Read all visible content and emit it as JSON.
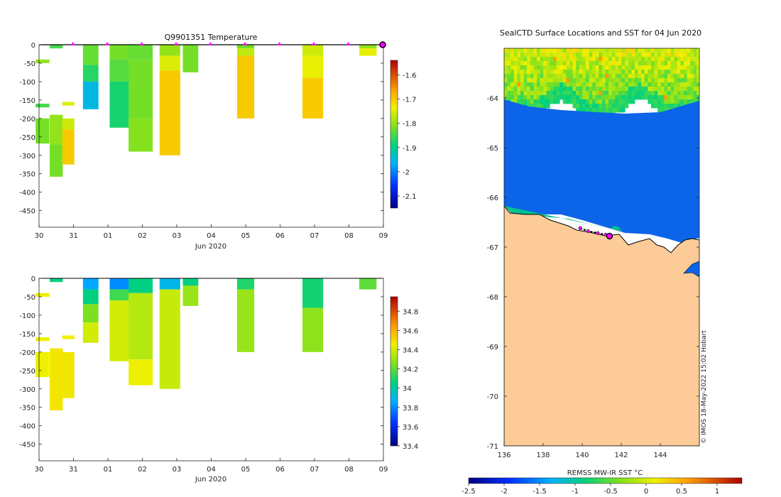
{
  "chart_data": [
    {
      "id": "temp",
      "type": "heatmap",
      "title": "Q9901351  Temperature",
      "xlabel": "Jun 2020",
      "ylabel": "",
      "ylim": [
        -495,
        0
      ],
      "y_ticks": [
        0,
        -50,
        -100,
        -150,
        -200,
        -250,
        -300,
        -350,
        -400,
        -450
      ],
      "x_ticks": [
        "30",
        "31",
        "01",
        "02",
        "03",
        "04",
        "05",
        "06",
        "07",
        "08",
        "09"
      ],
      "colorbar": {
        "min": -2.15,
        "max": -1.54,
        "ticks": [
          -1.6,
          -1.7,
          -1.8,
          -1.9,
          -2,
          -2.1
        ]
      },
      "surface_markers_day": [
        1,
        2,
        3,
        4,
        5,
        6,
        7,
        8,
        9,
        10
      ],
      "current_marker_day": 10,
      "profiles": [
        {
          "day": 0.1,
          "w": 0.4,
          "segments": [
            [
              -40,
              -50,
              -1.8
            ],
            [
              -160,
              -170,
              -1.85
            ],
            [
              -200,
              -268,
              -1.82
            ]
          ]
        },
        {
          "day": 0.5,
          "w": 0.38,
          "segments": [
            [
              0,
              -10,
              -1.85
            ],
            [
              -190,
              -270,
              -1.8
            ],
            [
              -270,
              -358,
              -1.82
            ]
          ]
        },
        {
          "day": 0.85,
          "w": 0.35,
          "segments": [
            [
              -155,
              -165,
              -1.75
            ],
            [
              -200,
              -230,
              -1.76
            ],
            [
              -230,
              -325,
              -1.7
            ]
          ]
        },
        {
          "day": 1.5,
          "w": 0.45,
          "segments": [
            [
              0,
              -55,
              -1.83
            ],
            [
              -55,
              -100,
              -1.87
            ],
            [
              -100,
              -175,
              -1.95
            ]
          ]
        },
        {
          "day": 2.35,
          "w": 0.6,
          "segments": [
            [
              0,
              -40,
              -1.82
            ],
            [
              -40,
              -100,
              -1.84
            ],
            [
              -100,
              -225,
              -1.88
            ]
          ]
        },
        {
          "day": 2.95,
          "w": 0.7,
          "segments": [
            [
              0,
              -40,
              -1.83
            ],
            [
              -40,
              -200,
              -1.82
            ],
            [
              -200,
              -290,
              -1.81
            ]
          ]
        },
        {
          "day": 3.8,
          "w": 0.6,
          "segments": [
            [
              0,
              -30,
              -1.8
            ],
            [
              -30,
              -70,
              -1.75
            ],
            [
              -70,
              -300,
              -1.7
            ]
          ]
        },
        {
          "day": 4.4,
          "w": 0.45,
          "segments": [
            [
              0,
              -75,
              -1.82
            ]
          ]
        },
        {
          "day": 6.0,
          "w": 0.5,
          "segments": [
            [
              0,
              -10,
              -1.82
            ],
            [
              -10,
              -30,
              -1.77
            ],
            [
              -30,
              -200,
              -1.7
            ]
          ]
        },
        {
          "day": 7.95,
          "w": 0.6,
          "segments": [
            [
              0,
              -30,
              -1.76
            ],
            [
              -30,
              -90,
              -1.74
            ],
            [
              -90,
              -200,
              -1.7
            ]
          ]
        },
        {
          "day": 9.55,
          "w": 0.5,
          "segments": [
            [
              0,
              -10,
              -1.8
            ],
            [
              -10,
              -30,
              -1.74
            ]
          ]
        }
      ]
    },
    {
      "id": "sal",
      "type": "heatmap",
      "title": "",
      "xlabel": "Jun 2020",
      "ylabel": "",
      "ylim": [
        -495,
        0
      ],
      "y_ticks": [
        0,
        -50,
        -100,
        -150,
        -200,
        -250,
        -300,
        -350,
        -400,
        -450
      ],
      "x_ticks": [
        "30",
        "31",
        "01",
        "02",
        "03",
        "04",
        "05",
        "06",
        "07",
        "08",
        "09"
      ],
      "colorbar": {
        "min": 33.4,
        "max": 34.95,
        "ticks": [
          34.8,
          34.6,
          34.4,
          34.2,
          34,
          33.8,
          33.6,
          33.4
        ]
      },
      "profiles": [
        {
          "day": 0.1,
          "w": 0.4,
          "segments": [
            [
              -40,
              -50,
              34.45
            ],
            [
              -160,
              -170,
              34.45
            ],
            [
              -200,
              -268,
              34.45
            ]
          ]
        },
        {
          "day": 0.5,
          "w": 0.38,
          "segments": [
            [
              0,
              -10,
              34.05
            ],
            [
              -190,
              -358,
              34.48
            ]
          ]
        },
        {
          "day": 0.85,
          "w": 0.35,
          "segments": [
            [
              -155,
              -165,
              34.45
            ],
            [
              -200,
              -325,
              34.48
            ]
          ]
        },
        {
          "day": 1.5,
          "w": 0.45,
          "segments": [
            [
              0,
              -30,
              33.85
            ],
            [
              -30,
              -70,
              34.05
            ],
            [
              -70,
              -120,
              34.25
            ],
            [
              -120,
              -175,
              34.4
            ]
          ]
        },
        {
          "day": 2.35,
          "w": 0.6,
          "segments": [
            [
              0,
              -30,
              33.8
            ],
            [
              -30,
              -60,
              34.15
            ],
            [
              -60,
              -225,
              34.4
            ]
          ]
        },
        {
          "day": 2.95,
          "w": 0.7,
          "segments": [
            [
              0,
              -40,
              34.05
            ],
            [
              -40,
              -220,
              34.35
            ],
            [
              -220,
              -290,
              34.45
            ]
          ]
        },
        {
          "day": 3.8,
          "w": 0.6,
          "segments": [
            [
              0,
              -30,
              33.9
            ],
            [
              -30,
              -300,
              34.38
            ]
          ]
        },
        {
          "day": 4.4,
          "w": 0.45,
          "segments": [
            [
              0,
              -20,
              34.05
            ],
            [
              -20,
              -75,
              34.3
            ]
          ]
        },
        {
          "day": 6.0,
          "w": 0.5,
          "segments": [
            [
              0,
              -30,
              34.1
            ],
            [
              -30,
              -200,
              34.3
            ]
          ]
        },
        {
          "day": 7.95,
          "w": 0.6,
          "segments": [
            [
              0,
              -80,
              34.08
            ],
            [
              -80,
              -200,
              34.28
            ]
          ]
        },
        {
          "day": 9.55,
          "w": 0.5,
          "segments": [
            [
              0,
              -30,
              34.2
            ]
          ]
        }
      ]
    },
    {
      "id": "map",
      "type": "heatmap",
      "title": "SealCTD Surface Locations and SST for 04 Jun 2020",
      "xlabel": "",
      "ylabel": "",
      "xlim": [
        136,
        146
      ],
      "ylim": [
        -71,
        -63
      ],
      "x_ticks": [
        136,
        138,
        140,
        142,
        144
      ],
      "y_ticks": [
        -64,
        -65,
        -66,
        -67,
        -68,
        -69,
        -70,
        -71
      ],
      "colorbar_label": "REMSS MW-IR SST °C",
      "colorbar": {
        "min": -2.5,
        "max": 1.35,
        "ticks": [
          -2.5,
          -2,
          -1.5,
          -1,
          -0.5,
          0,
          0.5,
          1
        ]
      },
      "track": [
        [
          139.9,
          -66.62
        ],
        [
          140.3,
          -66.68
        ],
        [
          140.8,
          -66.72
        ],
        [
          141.2,
          -66.75
        ],
        [
          141.4,
          -66.78
        ]
      ],
      "credit": "© IMOS 18-May-2022 15:02 Hobart"
    }
  ]
}
